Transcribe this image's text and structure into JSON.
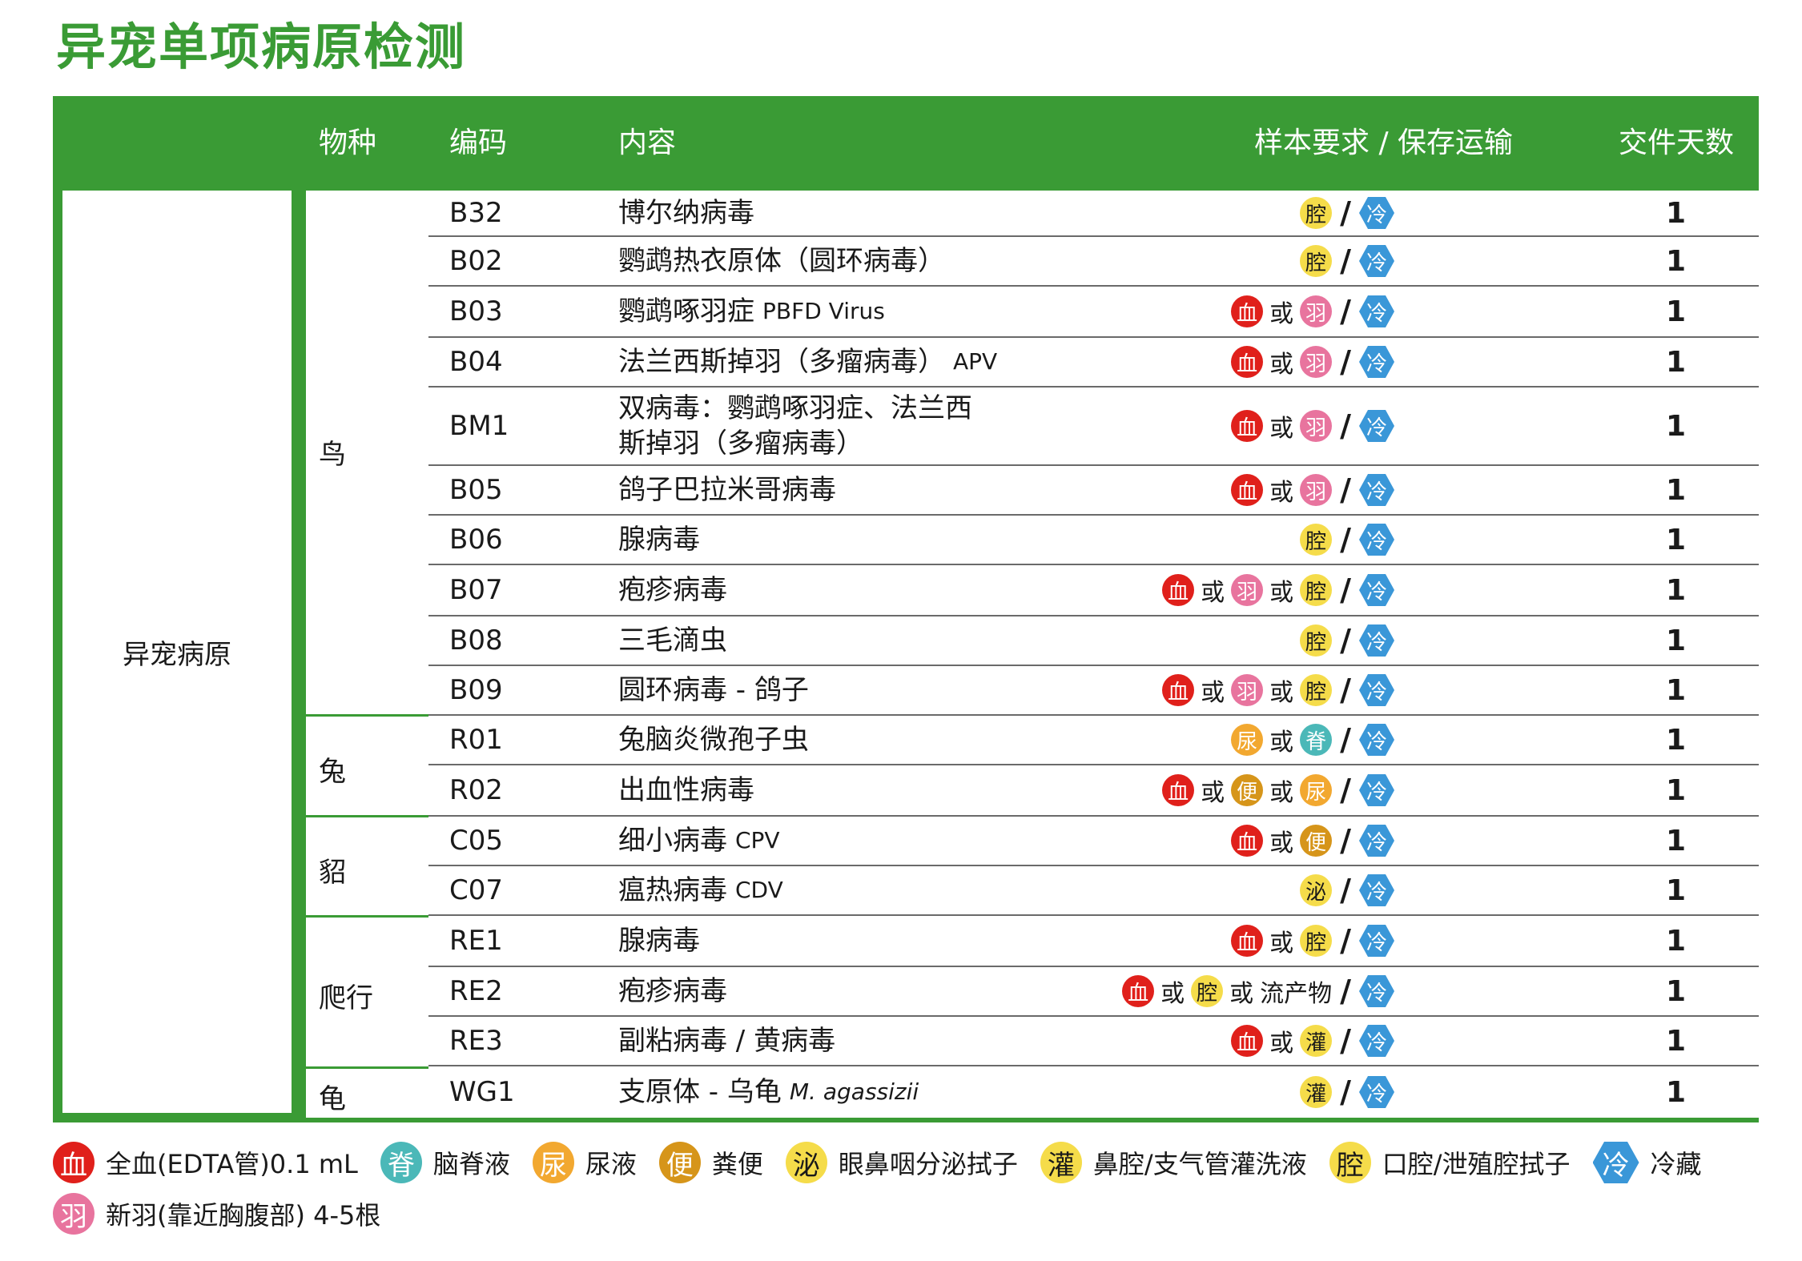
{
  "title": "异宠单项病原检测",
  "colors": {
    "brand_green": "#3a9b35",
    "blood": "#e0201b",
    "feather": "#e8749e",
    "cavity": "#f5dc4a",
    "spinal": "#4bb8b8",
    "urine": "#f2a830",
    "stool": "#d6951a",
    "cold": "#3a97d8"
  },
  "header": {
    "species": "物种",
    "code": "编码",
    "content": "内容",
    "sample": "样本要求 / 保存运输",
    "days": "交件天数"
  },
  "group_label": "异宠病原",
  "badges": {
    "xue": "血",
    "yu": "羽",
    "qiang": "腔",
    "ji": "脊",
    "niao": "尿",
    "bian": "便",
    "mi": "泌",
    "guan": "灌",
    "leng": "冷"
  },
  "or_text": "或",
  "slash_text": "/",
  "other_sample_text": "流产物",
  "species": [
    "鸟",
    "兔",
    "貂",
    "爬行",
    "龟"
  ],
  "rows": [
    {
      "code": "B32",
      "name": "博尔纳病毒",
      "days": "1"
    },
    {
      "code": "B02",
      "name": "鹦鹉热衣原体（圆环病毒）",
      "days": "1"
    },
    {
      "code": "B03",
      "name": "鹦鹉啄羽症",
      "extra": "PBFD Virus",
      "days": "1"
    },
    {
      "code": "B04",
      "name": "法兰西斯掉羽（多瘤病毒）",
      "extra": "APV",
      "days": "1"
    },
    {
      "code": "BM1",
      "name": "双病毒：鹦鹉啄羽症、法兰西斯掉羽（多瘤病毒）",
      "days": "1"
    },
    {
      "code": "B05",
      "name": "鸽子巴拉米哥病毒",
      "days": "1"
    },
    {
      "code": "B06",
      "name": "腺病毒",
      "days": "1"
    },
    {
      "code": "B07",
      "name": "疱疹病毒",
      "days": "1"
    },
    {
      "code": "B08",
      "name": "三毛滴虫",
      "days": "1"
    },
    {
      "code": "B09",
      "name": "圆环病毒 - 鸽子",
      "days": "1"
    },
    {
      "code": "R01",
      "name": "兔脑炎微孢子虫",
      "days": "1"
    },
    {
      "code": "R02",
      "name": "出血性病毒",
      "days": "1"
    },
    {
      "code": "C05",
      "name": "细小病毒",
      "extra": "CPV",
      "days": "1"
    },
    {
      "code": "C07",
      "name": "瘟热病毒",
      "extra": "CDV",
      "days": "1"
    },
    {
      "code": "RE1",
      "name": "腺病毒",
      "days": "1"
    },
    {
      "code": "RE2",
      "name": "疱疹病毒",
      "days": "1"
    },
    {
      "code": "RE3",
      "name": "副粘病毒 / 黄病毒",
      "days": "1"
    },
    {
      "code": "WG1",
      "name": "支原体 - 乌龟",
      "extra": "M. agassizii",
      "days": "1"
    }
  ],
  "legend": {
    "xue": "全血(EDTA管)0.1 mL",
    "ji": "脑脊液",
    "niao": "尿液",
    "bian": "粪便",
    "mi": "眼鼻咽分泌拭子",
    "guan": "鼻腔/支气管灌洗液",
    "qiang": "口腔/泄殖腔拭子",
    "leng": "冷藏",
    "yu": "新羽(靠近胸腹部) 4-5根"
  }
}
